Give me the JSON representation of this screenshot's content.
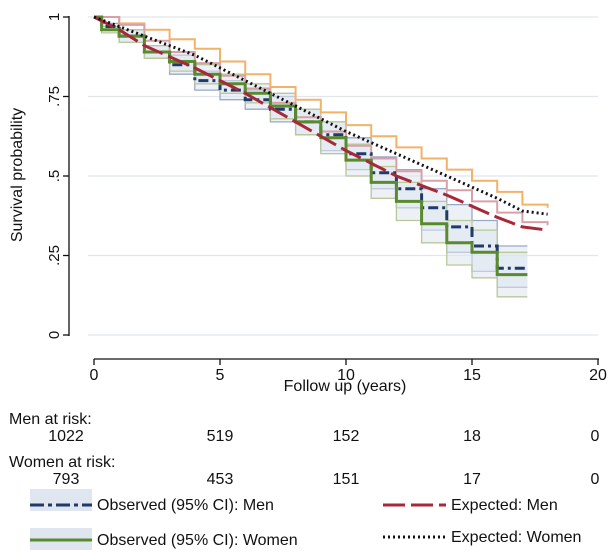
{
  "chart_data": {
    "type": "line",
    "title": "",
    "xlabel": "Follow up (years)",
    "ylabel": "Survival probability",
    "xlim": [
      0,
      20
    ],
    "ylim": [
      0,
      1
    ],
    "x_ticks": [
      0,
      5,
      10,
      15,
      20
    ],
    "y_ticks": [
      0,
      0.25,
      0.5,
      0.75,
      1
    ],
    "y_tick_labels": [
      "0",
      ".25",
      ".5",
      ".75",
      "1"
    ],
    "grid": "horizontal",
    "series": [
      {
        "key": "obs_men",
        "name": "Observed (95% CI): Men",
        "style": "stepped dash-dot",
        "x": [
          0,
          0.3,
          1,
          2,
          3,
          4,
          5,
          6,
          7,
          8,
          9,
          10,
          11,
          12,
          13,
          14,
          15,
          16,
          17.2
        ],
        "y": [
          1,
          0.97,
          0.94,
          0.89,
          0.85,
          0.8,
          0.77,
          0.74,
          0.71,
          0.67,
          0.63,
          0.57,
          0.51,
          0.46,
          0.4,
          0.34,
          0.28,
          0.21,
          0.21
        ]
      },
      {
        "key": "obs_women",
        "name": "Observed (95% CI): Women",
        "style": "stepped solid",
        "x": [
          0,
          0.3,
          1,
          2,
          3,
          4,
          5,
          6,
          7,
          8,
          9,
          10,
          11,
          12,
          13,
          14,
          15,
          16,
          17.2
        ],
        "y": [
          1,
          0.96,
          0.94,
          0.89,
          0.86,
          0.82,
          0.79,
          0.76,
          0.72,
          0.67,
          0.62,
          0.55,
          0.48,
          0.42,
          0.35,
          0.29,
          0.26,
          0.19,
          0.19
        ]
      },
      {
        "key": "exp_men",
        "name": "Expected: Men",
        "style": "long dash",
        "x": [
          0,
          1,
          2,
          4,
          6,
          8,
          10,
          12,
          14,
          16,
          17,
          18
        ],
        "y": [
          1,
          0.96,
          0.91,
          0.84,
          0.76,
          0.67,
          0.58,
          0.5,
          0.44,
          0.37,
          0.34,
          0.33
        ]
      },
      {
        "key": "exp_women",
        "name": "Expected: Women",
        "style": "dotted",
        "x": [
          0,
          2,
          4,
          6,
          8,
          10,
          12,
          14,
          16,
          17,
          18
        ],
        "y": [
          1,
          0.94,
          0.88,
          0.8,
          0.72,
          0.64,
          0.57,
          0.5,
          0.43,
          0.39,
          0.38
        ]
      }
    ],
    "ci_bands": [
      {
        "key": "ci_men",
        "x": [
          0,
          0.3,
          1,
          2,
          3,
          4,
          5,
          6,
          7,
          8,
          9,
          10,
          11,
          12,
          13,
          14,
          15,
          16,
          17.2
        ],
        "lower": [
          1,
          0.96,
          0.92,
          0.87,
          0.82,
          0.77,
          0.74,
          0.71,
          0.67,
          0.63,
          0.58,
          0.52,
          0.46,
          0.4,
          0.33,
          0.26,
          0.2,
          0.15,
          0.15
        ],
        "upper": [
          1,
          0.98,
          0.96,
          0.91,
          0.88,
          0.83,
          0.8,
          0.77,
          0.75,
          0.71,
          0.67,
          0.62,
          0.56,
          0.52,
          0.46,
          0.41,
          0.36,
          0.28,
          0.28
        ]
      },
      {
        "key": "ci_women",
        "x": [
          0,
          0.3,
          1,
          2,
          3,
          4,
          5,
          6,
          7,
          8,
          9,
          10,
          11,
          12,
          13,
          14,
          15,
          16,
          17.2
        ],
        "lower": [
          1,
          0.95,
          0.92,
          0.87,
          0.83,
          0.79,
          0.76,
          0.73,
          0.68,
          0.63,
          0.57,
          0.5,
          0.43,
          0.36,
          0.29,
          0.22,
          0.18,
          0.12,
          0.12
        ],
        "upper": [
          1,
          0.97,
          0.96,
          0.91,
          0.89,
          0.85,
          0.82,
          0.79,
          0.76,
          0.71,
          0.67,
          0.6,
          0.53,
          0.48,
          0.42,
          0.36,
          0.33,
          0.26,
          0.26
        ]
      }
    ],
    "colors": {
      "obs_men": "#1f3a6b",
      "obs_women": "#5a8a2e",
      "exp_men": "#a8283a",
      "exp_women": "#111111",
      "ci_men_line": "#9aa8c8",
      "ci_women_line": "#b8c89a",
      "ci_fill": "#dfe6ef",
      "exp_men_band": "#d9a0a8",
      "exp_women_band": "#f2b26a",
      "grid": "#e1e6ec",
      "axis": "#111111"
    },
    "legend_placement": "bottom"
  },
  "risk_table": {
    "men_label": "Men at risk:",
    "men_values": [
      "1022",
      "519",
      "152",
      "18",
      "0"
    ],
    "women_label": "Women at risk:",
    "women_values": [
      "793",
      "453",
      "151",
      "17",
      "0"
    ]
  },
  "legend": {
    "obs_men": "Observed (95% CI): Men",
    "obs_women": "Observed (95% CI): Women",
    "exp_men": "Expected: Men",
    "exp_women": "Expected: Women"
  }
}
